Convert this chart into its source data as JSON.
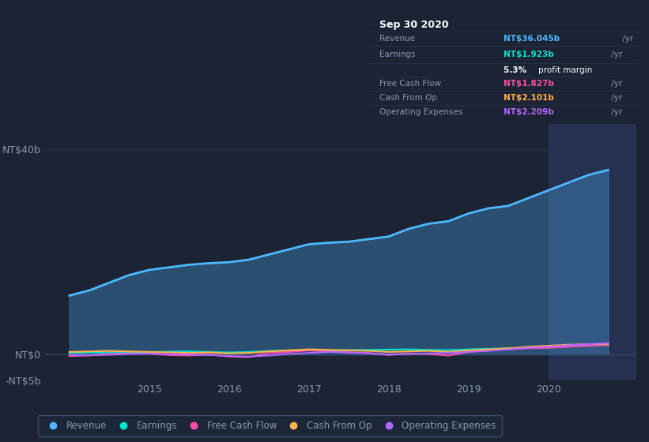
{
  "background_color": "#1c2333",
  "plot_bg_color": "#1c2333",
  "revenue_color": "#4db8ff",
  "earnings_color": "#00e5cc",
  "fcf_color": "#ff4dac",
  "cashfromop_color": "#ffb347",
  "opex_color": "#b366ff",
  "ylim_min": -5000000000,
  "ylim_max": 45000000000,
  "years": [
    2014.0,
    2014.25,
    2014.5,
    2014.75,
    2015.0,
    2015.25,
    2015.5,
    2015.75,
    2016.0,
    2016.25,
    2016.5,
    2016.75,
    2017.0,
    2017.25,
    2017.5,
    2017.75,
    2018.0,
    2018.25,
    2018.5,
    2018.75,
    2019.0,
    2019.25,
    2019.5,
    2019.75,
    2020.0,
    2020.25,
    2020.5,
    2020.75
  ],
  "revenue": [
    11500000000,
    12500000000,
    14000000000,
    15500000000,
    16500000000,
    17000000000,
    17500000000,
    17800000000,
    18000000000,
    18500000000,
    19500000000,
    20500000000,
    21500000000,
    21800000000,
    22000000000,
    22500000000,
    23000000000,
    24500000000,
    25500000000,
    26000000000,
    27500000000,
    28500000000,
    29000000000,
    30500000000,
    32000000000,
    33500000000,
    35000000000,
    36000000000
  ],
  "earnings": [
    300000000,
    350000000,
    400000000,
    450000000,
    500000000,
    550000000,
    600000000,
    500000000,
    400000000,
    500000000,
    700000000,
    800000000,
    900000000,
    800000000,
    850000000,
    900000000,
    950000000,
    1000000000,
    900000000,
    850000000,
    1000000000,
    1100000000,
    1200000000,
    1300000000,
    1500000000,
    1700000000,
    1850000000,
    1923000000
  ],
  "fcf": [
    -300000000,
    -200000000,
    100000000,
    200000000,
    150000000,
    -100000000,
    -200000000,
    0,
    -400000000,
    -500000000,
    300000000,
    500000000,
    800000000,
    600000000,
    400000000,
    300000000,
    -100000000,
    200000000,
    100000000,
    -200000000,
    500000000,
    800000000,
    1000000000,
    1200000000,
    1300000000,
    1500000000,
    1700000000,
    1827000000
  ],
  "cash_from_op": [
    500000000,
    600000000,
    700000000,
    600000000,
    500000000,
    400000000,
    300000000,
    400000000,
    200000000,
    300000000,
    600000000,
    800000000,
    1000000000,
    900000000,
    800000000,
    700000000,
    500000000,
    600000000,
    700000000,
    500000000,
    800000000,
    1000000000,
    1200000000,
    1500000000,
    1700000000,
    1900000000,
    2000000000,
    2101000000
  ],
  "opex": [
    -100000000,
    -150000000,
    -50000000,
    100000000,
    200000000,
    100000000,
    0,
    -100000000,
    -300000000,
    -400000000,
    -200000000,
    100000000,
    300000000,
    500000000,
    400000000,
    200000000,
    0,
    100000000,
    200000000,
    300000000,
    500000000,
    700000000,
    1000000000,
    1300000000,
    1500000000,
    1800000000,
    2000000000,
    2209000000
  ],
  "tooltip_bg": "#0a0f1e",
  "tooltip_border": "#2a3a5e",
  "highlight_start": 2020.0,
  "highlight_end": 2021.1,
  "highlight_color": "#263050",
  "legend_labels": [
    "Revenue",
    "Earnings",
    "Free Cash Flow",
    "Cash From Op",
    "Operating Expenses"
  ],
  "legend_colors": [
    "#4db8ff",
    "#00e5cc",
    "#ff4dac",
    "#ffb347",
    "#b366ff"
  ],
  "grid_color": "#2a3550",
  "text_color": "#8899aa",
  "zero_line_color": "#3a4a6a",
  "xlim_min": 2013.7,
  "xlim_max": 2021.1
}
